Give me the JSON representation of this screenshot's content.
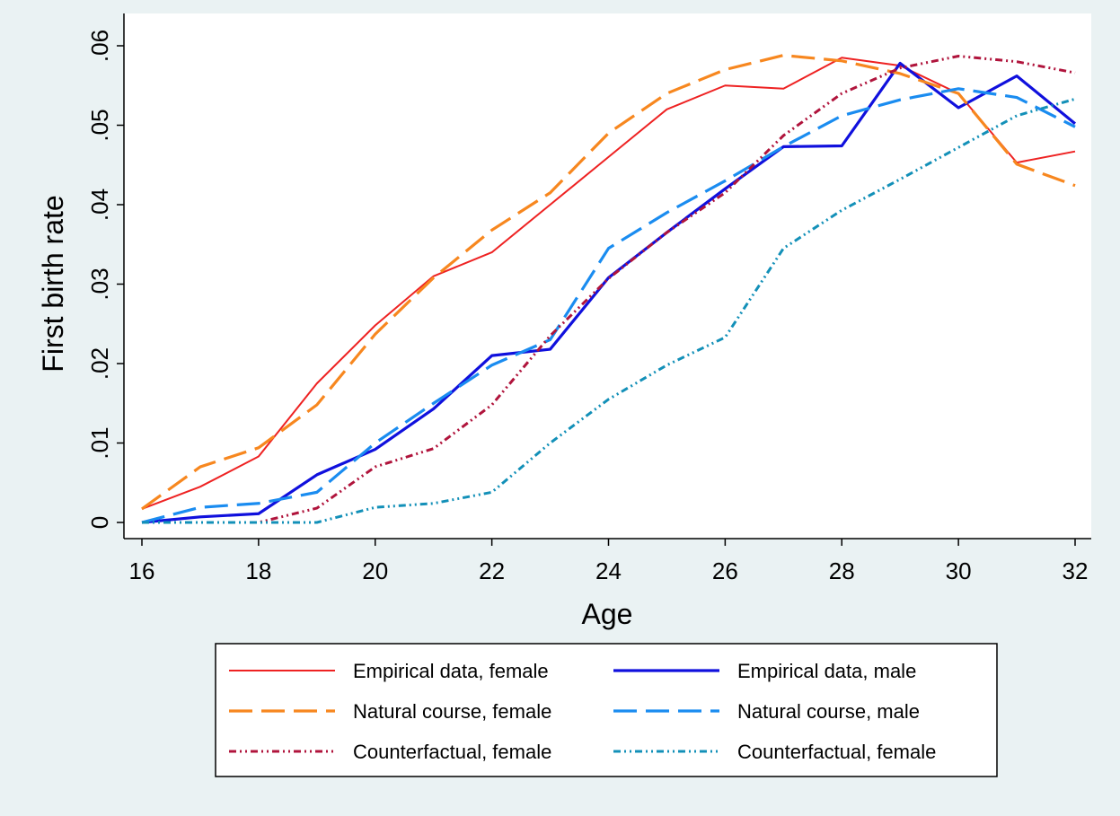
{
  "chart_data": {
    "type": "line",
    "x_label": "Age",
    "y_label": "First birth rate",
    "x": [
      16,
      17,
      18,
      19,
      20,
      21,
      22,
      23,
      24,
      25,
      26,
      27,
      28,
      29,
      30,
      31,
      32
    ],
    "xlim": [
      16,
      32
    ],
    "xticks": [
      16,
      18,
      20,
      22,
      24,
      26,
      28,
      30,
      32
    ],
    "ylim": [
      0,
      0.06
    ],
    "yticks": [
      0,
      {
        "value": 0.01,
        "label": ".01"
      },
      {
        "value": 0.02,
        "label": ".02"
      },
      {
        "value": 0.03,
        "label": ".03"
      },
      {
        "value": 0.04,
        "label": ".04"
      },
      {
        "value": 0.05,
        "label": ".05"
      },
      {
        "value": 0.06,
        "label": ".06"
      }
    ],
    "grid": false,
    "legend": "bottom",
    "series": [
      {
        "name": "Empirical data, female",
        "color": "#ee2222",
        "style": "solid",
        "values": [
          0.0017,
          0.0045,
          0.0083,
          0.0175,
          0.0248,
          0.031,
          0.034,
          0.04,
          0.046,
          0.052,
          0.055,
          0.0546,
          0.0585,
          0.0575,
          0.054,
          0.0453,
          0.0467
        ]
      },
      {
        "name": "Empirical data, male",
        "color": "#1010dd",
        "style": "thick",
        "values": [
          0,
          0.0007,
          0.0011,
          0.006,
          0.0092,
          0.0143,
          0.021,
          0.0218,
          0.0308,
          0.0365,
          0.042,
          0.0473,
          0.0474,
          0.0578,
          0.0522,
          0.0562,
          0.0502
        ]
      },
      {
        "name": "Natural course, female",
        "color": "#f7871f",
        "style": "dash",
        "values": [
          0.0017,
          0.007,
          0.0094,
          0.0148,
          0.0237,
          0.0308,
          0.0368,
          0.0415,
          0.049,
          0.054,
          0.057,
          0.0588,
          0.0581,
          0.0565,
          0.054,
          0.0451,
          0.0424
        ]
      },
      {
        "name": "Natural course, male",
        "color": "#1a8cf0",
        "style": "dash",
        "values": [
          0,
          0.0019,
          0.0024,
          0.0038,
          0.01,
          0.015,
          0.0198,
          0.023,
          0.0345,
          0.039,
          0.043,
          0.0473,
          0.0512,
          0.0532,
          0.0546,
          0.0535,
          0.0498
        ]
      },
      {
        "name": "Counterfactual, female",
        "color": "#b0143c",
        "style": "dashdot",
        "values": [
          0,
          0,
          0,
          0.0018,
          0.007,
          0.0093,
          0.0148,
          0.0235,
          0.0307,
          0.0365,
          0.0415,
          0.0487,
          0.054,
          0.0572,
          0.0587,
          0.058,
          0.0566
        ]
      },
      {
        "name": "Counterfactual, female",
        "color": "#1390b8",
        "style": "dashdot",
        "values": [
          0,
          0,
          0,
          0,
          0.0019,
          0.0024,
          0.0038,
          0.01,
          0.0155,
          0.0198,
          0.0233,
          0.0345,
          0.0393,
          0.0432,
          0.0472,
          0.0512,
          0.0533
        ]
      }
    ]
  }
}
